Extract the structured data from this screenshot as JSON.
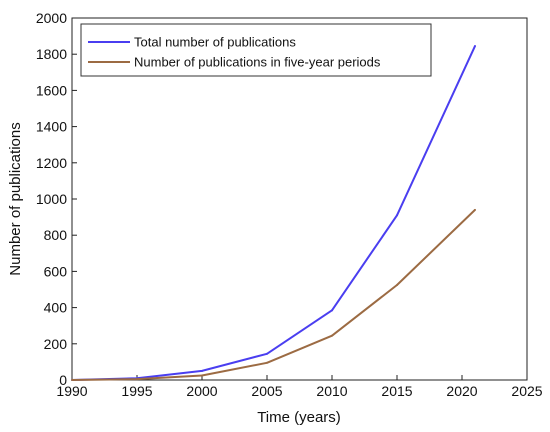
{
  "chart_data": {
    "type": "line",
    "title": "",
    "xlabel": "Time (years)",
    "ylabel": "Number of publications",
    "xlim": [
      1990,
      2025
    ],
    "ylim": [
      0,
      2000
    ],
    "xticks": [
      1990,
      1995,
      2000,
      2005,
      2010,
      2015,
      2020,
      2025
    ],
    "yticks": [
      0,
      200,
      400,
      600,
      800,
      1000,
      1200,
      1400,
      1600,
      1800,
      2000
    ],
    "grid": false,
    "legend": "top-left",
    "series": [
      {
        "name": "Total number of publications",
        "color": "#4a3ef0",
        "x": [
          1990,
          1995,
          2000,
          2005,
          2010,
          2015,
          2021
        ],
        "y": [
          0,
          10,
          50,
          145,
          385,
          910,
          1845
        ]
      },
      {
        "name": "Number of publications in five-year periods",
        "color": "#9c6b43",
        "x": [
          1990,
          1995,
          2000,
          2005,
          2010,
          2015,
          2021
        ],
        "y": [
          0,
          5,
          25,
          95,
          245,
          525,
          940
        ]
      }
    ]
  }
}
